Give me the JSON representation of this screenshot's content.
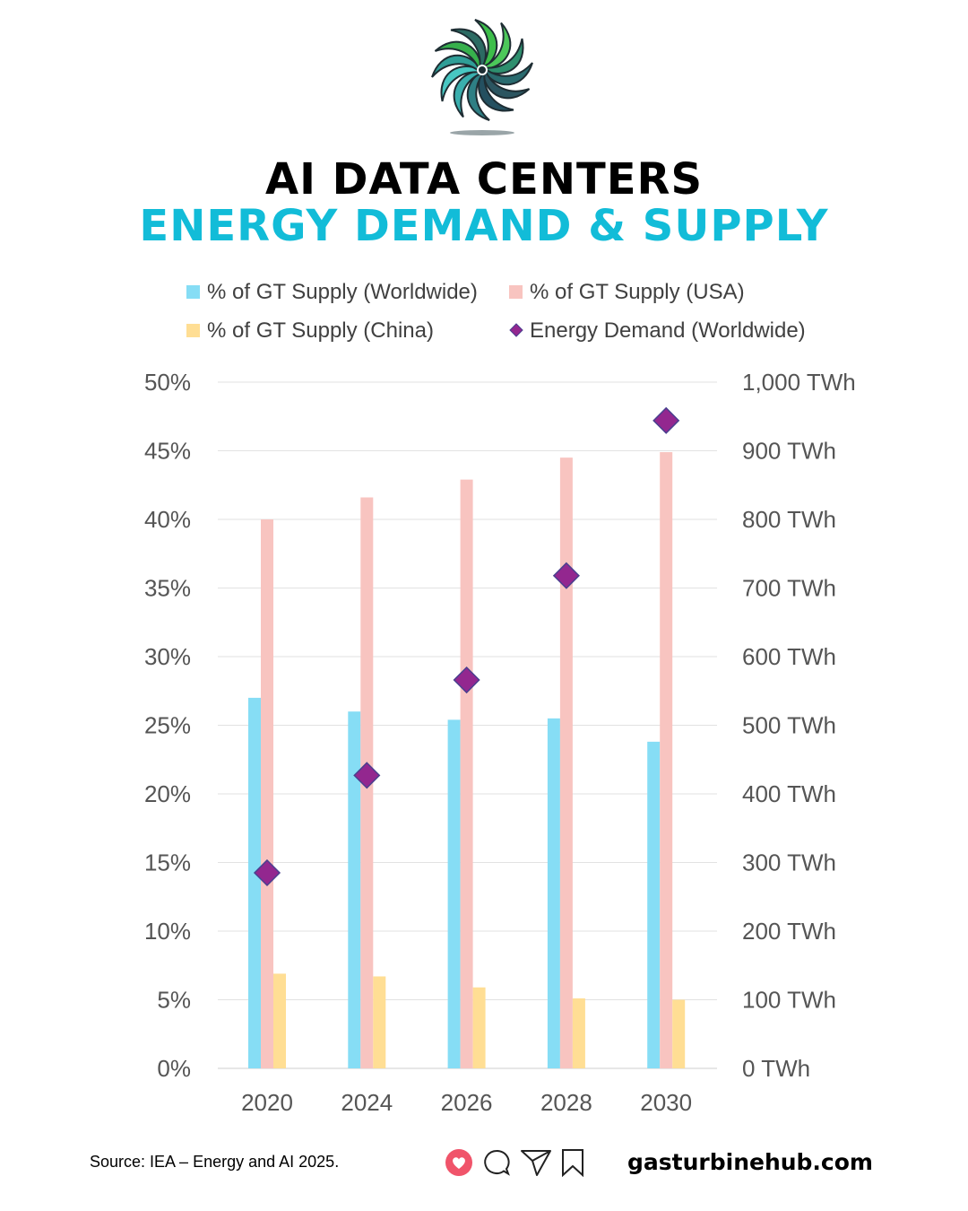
{
  "header": {
    "title_line1": "AI DATA CENTERS",
    "title_line2": "ENERGY DEMAND & SUPPLY"
  },
  "footer": {
    "source": "Source: IEA – Energy and AI 2025.",
    "site": "gasturbinehub.com",
    "icons": [
      "heart-icon",
      "comment-icon",
      "send-icon",
      "bookmark-icon"
    ]
  },
  "colors": {
    "worldwide": "#86DDF5",
    "usa": "#F8C4C0",
    "china": "#FFDE94",
    "demand": "#93278F",
    "title_accent": "#12BCD8"
  },
  "chart_data": {
    "type": "bar",
    "categories": [
      "2020",
      "2024",
      "2026",
      "2028",
      "2030"
    ],
    "series": [
      {
        "name": "% of GT Supply (Worldwide)",
        "axis": "left",
        "values": [
          27.0,
          26.0,
          25.4,
          25.5,
          23.8
        ]
      },
      {
        "name": "% of GT Supply (USA)",
        "axis": "left",
        "values": [
          40.0,
          41.6,
          42.9,
          44.5,
          44.9
        ]
      },
      {
        "name": "% of GT Supply (China)",
        "axis": "left",
        "values": [
          6.9,
          6.7,
          5.9,
          5.1,
          5.0
        ]
      },
      {
        "name": "Energy Demand (Worldwide)",
        "axis": "right",
        "type": "scatter",
        "marker": "diamond",
        "values": [
          285,
          427,
          566,
          718,
          944
        ]
      }
    ],
    "y_left": {
      "range": [
        0,
        50
      ],
      "ticks": [
        "0%",
        "5%",
        "10%",
        "15%",
        "20%",
        "25%",
        "30%",
        "35%",
        "40%",
        "45%",
        "50%"
      ]
    },
    "y_right": {
      "range": [
        0,
        1000
      ],
      "ticks": [
        "0 TWh",
        "100 TWh",
        "200 TWh",
        "300 TWh",
        "400 TWh",
        "500 TWh",
        "600 TWh",
        "700 TWh",
        "800 TWh",
        "900 TWh",
        "1,000 TWh"
      ]
    },
    "grid": true,
    "legend": "top"
  }
}
